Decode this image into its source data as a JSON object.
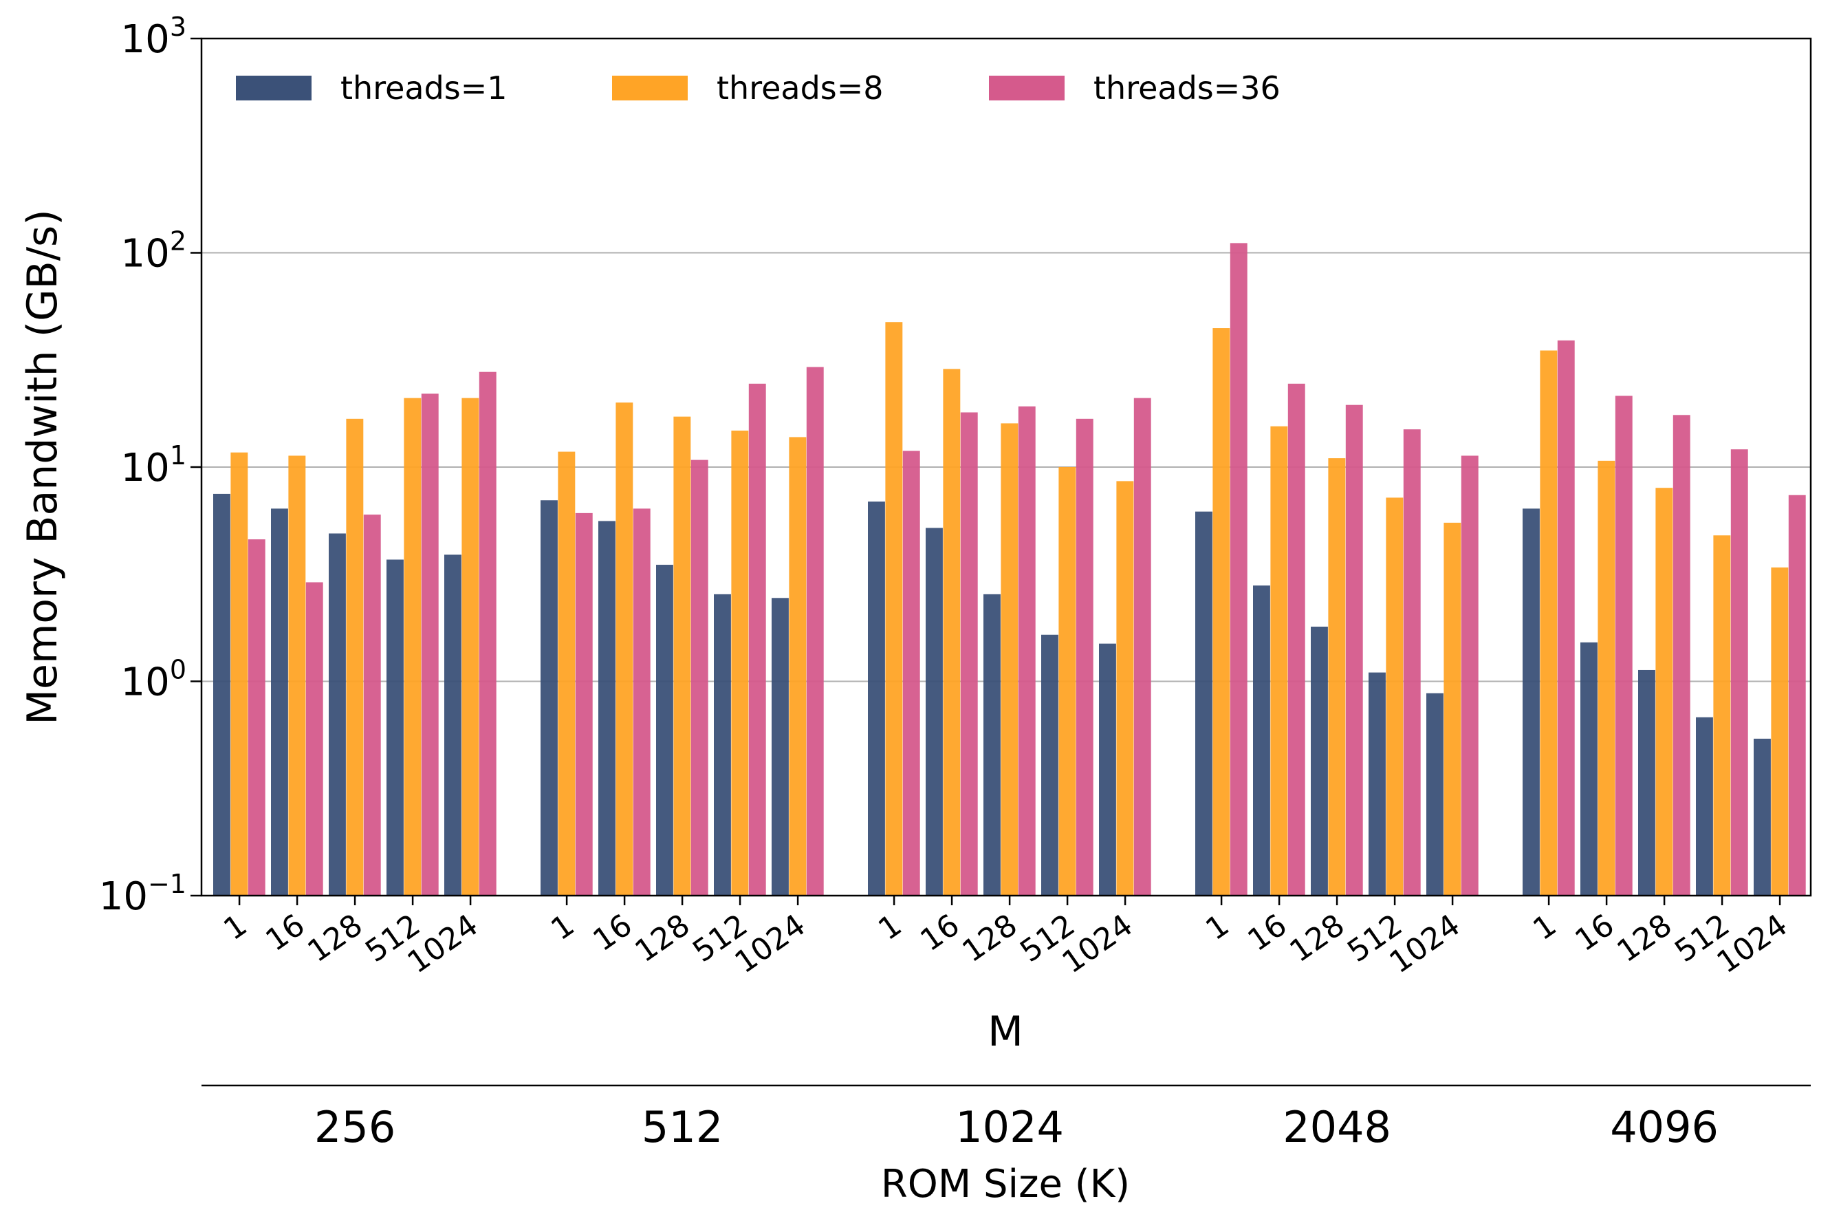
{
  "chart_data": {
    "type": "bar",
    "scale": "log",
    "ylabel": "Memory Bandwith (GB/s)",
    "xlabel": "M",
    "secondary_xlabel": "ROM Size (K)",
    "ylim": [
      0.1,
      1000
    ],
    "ytick_base": "10",
    "yticks": [
      {
        "exp": "−1",
        "value": 0.1
      },
      {
        "exp": "0",
        "value": 1
      },
      {
        "exp": "1",
        "value": 10
      },
      {
        "exp": "2",
        "value": 100
      },
      {
        "exp": "3",
        "value": 1000
      }
    ],
    "grid": true,
    "legend_position": "top-left",
    "groups": [
      "256",
      "512",
      "1024",
      "2048",
      "4096"
    ],
    "categories": [
      "1",
      "16",
      "128",
      "512",
      "1024"
    ],
    "series": [
      {
        "name": "threads=1",
        "color": "#3b5178",
        "values": [
          [
            7.5,
            6.4,
            4.9,
            3.7,
            3.9
          ],
          [
            7.0,
            5.6,
            3.5,
            2.55,
            2.45
          ],
          [
            6.9,
            5.2,
            2.55,
            1.65,
            1.5
          ],
          [
            6.2,
            2.8,
            1.8,
            1.1,
            0.88
          ],
          [
            6.4,
            1.52,
            1.13,
            0.68,
            0.54
          ]
        ]
      },
      {
        "name": "threads=8",
        "color": "#ffa426",
        "values": [
          [
            11.7,
            11.3,
            16.8,
            21.0,
            21.0
          ],
          [
            11.8,
            20.0,
            17.2,
            14.8,
            13.8
          ],
          [
            47.5,
            28.7,
            16.0,
            10.0,
            8.6
          ],
          [
            44.5,
            15.5,
            11.0,
            7.2,
            5.5
          ],
          [
            35.0,
            10.7,
            8.0,
            4.8,
            3.4
          ]
        ]
      },
      {
        "name": "threads=36",
        "color": "#d55a8c",
        "values": [
          [
            4.6,
            2.9,
            6.0,
            22.0,
            27.8
          ],
          [
            6.1,
            6.4,
            10.8,
            24.5,
            29.3
          ],
          [
            11.9,
            18.0,
            19.2,
            16.8,
            21.0
          ],
          [
            111.0,
            24.5,
            19.5,
            15.0,
            11.3
          ],
          [
            39.0,
            21.5,
            17.5,
            12.1,
            7.4
          ]
        ]
      }
    ]
  }
}
